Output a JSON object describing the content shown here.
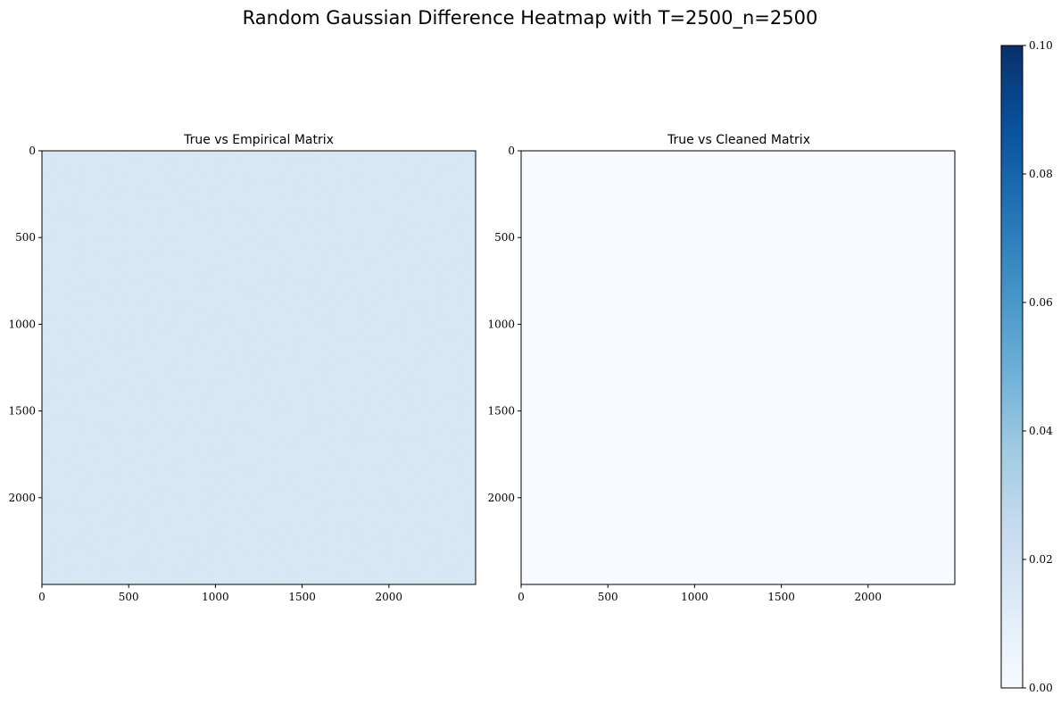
{
  "chart_data": {
    "type": "heatmap",
    "title": "Random Gaussian Difference Heatmap with T=2500_n=2500",
    "colormap": "Blues",
    "colorbar": {
      "range": [
        0.0,
        0.1
      ],
      "ticks": [
        "0.00",
        "0.02",
        "0.04",
        "0.06",
        "0.08",
        "0.10"
      ],
      "tick_values": [
        0.0,
        0.02,
        0.04,
        0.06,
        0.08,
        0.1
      ]
    },
    "panels": [
      {
        "title": "True vs Empirical Matrix",
        "xlim": [
          0,
          2500
        ],
        "ylim": [
          0,
          2500
        ],
        "xticks": [
          "0",
          "500",
          "1000",
          "1500",
          "2000"
        ],
        "yticks": [
          "0",
          "500",
          "1000",
          "1500",
          "2000"
        ],
        "tick_values": [
          0,
          500,
          1000,
          1500,
          2000
        ],
        "approx_value": 0.02
      },
      {
        "title": "True vs Cleaned Matrix",
        "xlim": [
          0,
          2500
        ],
        "ylim": [
          0,
          2500
        ],
        "xticks": [
          "0",
          "500",
          "1000",
          "1500",
          "2000"
        ],
        "yticks": [
          "0",
          "500",
          "1000",
          "1500",
          "2000"
        ],
        "tick_values": [
          0,
          500,
          1000,
          1500,
          2000
        ],
        "approx_value": 0.0
      }
    ],
    "colors": {
      "cmap_low": "#f7fbff",
      "cmap_02": "#d6e6f4",
      "cmap_high": "#08306b"
    }
  }
}
